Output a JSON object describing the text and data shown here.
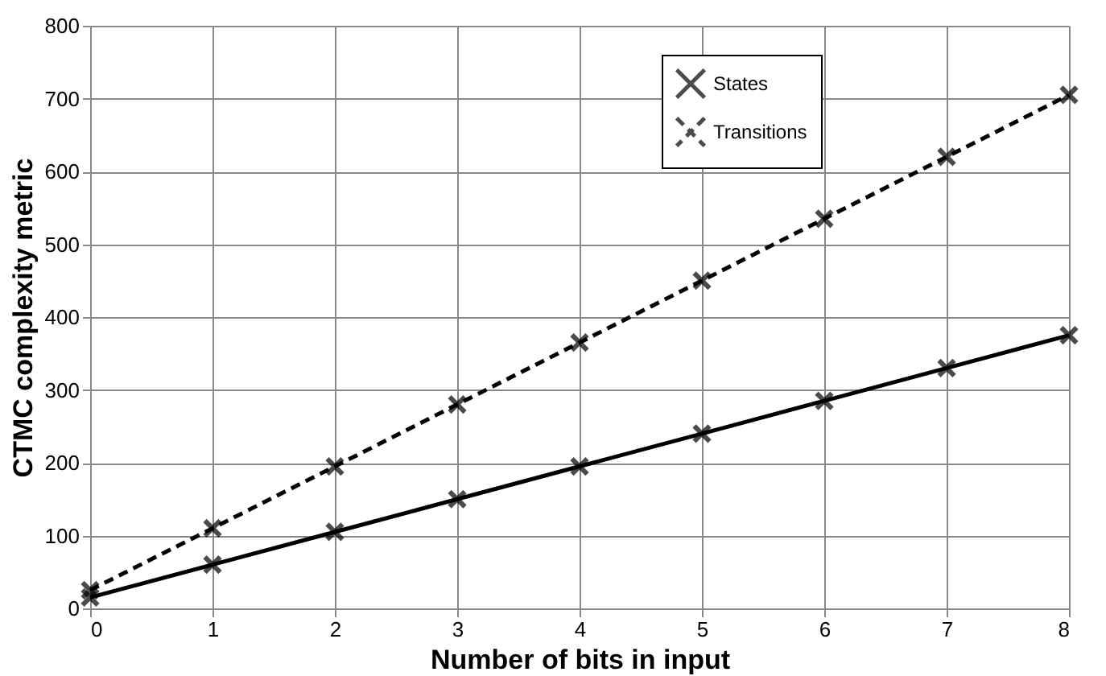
{
  "chart_data": {
    "type": "line",
    "xlabel": "Number of bits in input",
    "ylabel": "CTMC complexity metric",
    "x": [
      0,
      1,
      2,
      3,
      4,
      5,
      6,
      7,
      8
    ],
    "series": [
      {
        "name": "States",
        "color": "#000000",
        "line_style": "solid",
        "marker": "cross",
        "values": [
          15,
          60,
          105,
          150,
          195,
          240,
          285,
          330,
          375
        ]
      },
      {
        "name": "Transitions",
        "color": "#000000",
        "line_style": "dashed",
        "marker": "cross",
        "values": [
          25,
          110,
          195,
          280,
          365,
          450,
          535,
          620,
          705
        ]
      }
    ],
    "xlim": [
      0,
      8
    ],
    "xticks": [
      0,
      1,
      2,
      3,
      4,
      5,
      6,
      7,
      8
    ],
    "ylim": [
      0,
      800
    ],
    "yticks": [
      0,
      100,
      200,
      300,
      400,
      500,
      600,
      700,
      800
    ],
    "grid": true,
    "legend": "top right"
  }
}
